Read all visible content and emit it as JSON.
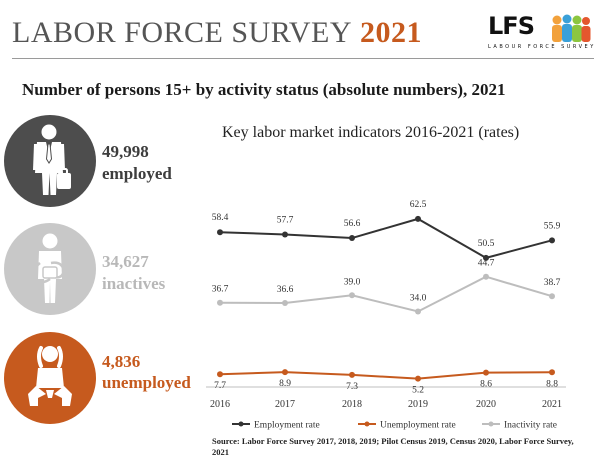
{
  "header": {
    "title_main": "LABOR FORCE SURVEY",
    "title_year": "2021",
    "logo_text": "LFS",
    "logo_subtitle": "LABOUR FORCE SURVEY"
  },
  "subtitle": "Number of persons 15+ by activity status (absolute numbers), 2021",
  "stats": {
    "employed": {
      "value": "49,998",
      "label": "employed",
      "icon": "businessman-icon",
      "color": "#4d4d4d"
    },
    "inactive": {
      "value": "34,627",
      "label": "inactives",
      "icon": "inactive-person-icon",
      "color": "#c8c8c8"
    },
    "unemployed": {
      "value": "4,836",
      "label": "unemployed",
      "icon": "distressed-person-icon",
      "color": "#c65a1e"
    }
  },
  "chart_data": {
    "type": "line",
    "title": "Key labor market indicators 2016-2021 (rates)",
    "categories": [
      "2016",
      "2017",
      "2018",
      "2019",
      "2020",
      "2021"
    ],
    "series": [
      {
        "name": "Employment rate",
        "values": [
          58.4,
          57.7,
          56.6,
          62.5,
          50.5,
          55.9
        ],
        "color": "#333333"
      },
      {
        "name": "Unemployment rate",
        "values": [
          7.7,
          8.9,
          7.3,
          5.2,
          8.6,
          8.8
        ],
        "color": "#c65a1e"
      },
      {
        "name": "Inactivity rate",
        "values": [
          36.7,
          36.6,
          39.0,
          34.0,
          44.7,
          38.7
        ],
        "color": "#bdbdbd"
      }
    ],
    "ylim": [
      0,
      70
    ],
    "grid": false,
    "legend": "bottom"
  },
  "source": "Source: Labor Force Survey 2017, 2018, 2019; Pilot Census 2019, Census 2020, Labor Force Survey, 2021"
}
